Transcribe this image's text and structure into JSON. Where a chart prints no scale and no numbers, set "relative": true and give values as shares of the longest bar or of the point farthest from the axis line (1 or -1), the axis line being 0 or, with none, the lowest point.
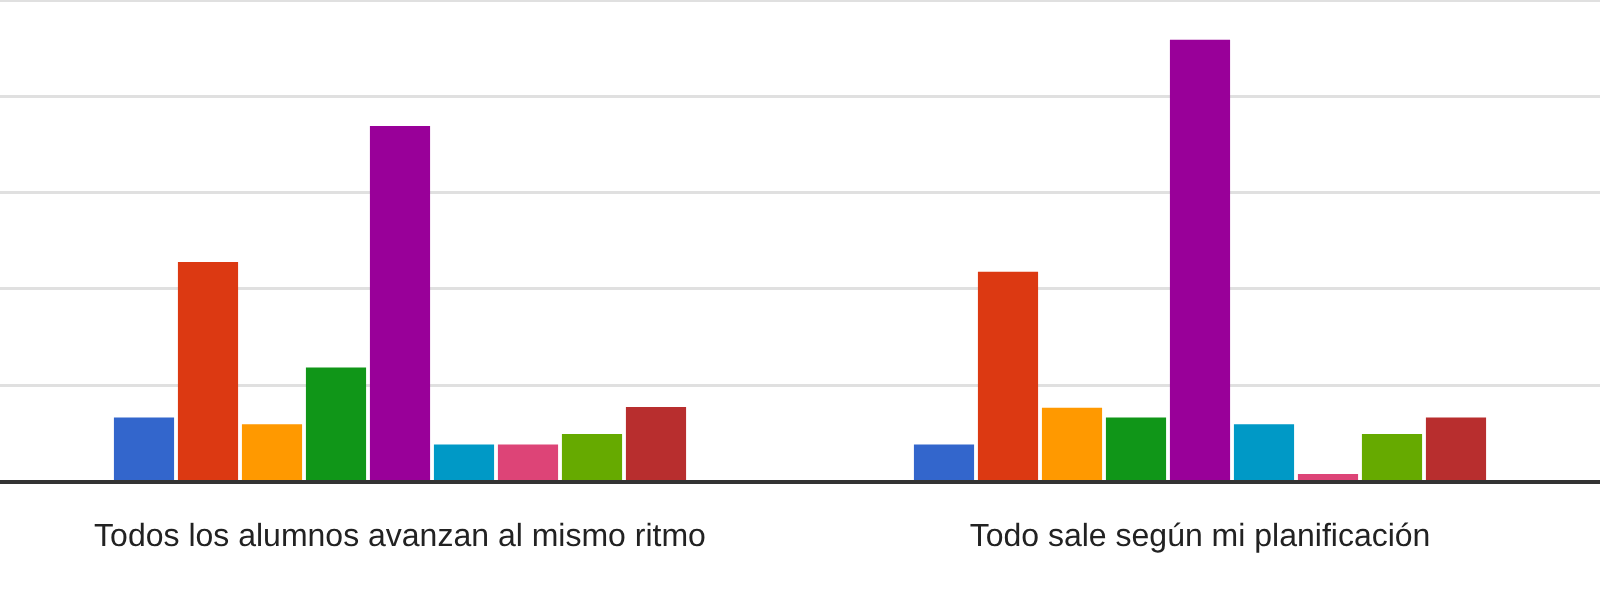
{
  "chart_data": {
    "type": "bar",
    "relative": true,
    "grid": true,
    "legend": false,
    "categories": [
      "Todos los alumnos avanzan al mismo ritmo",
      "Todo sale según mi planificación"
    ],
    "series": [
      {
        "color": "#3366cc",
        "values": [
          0.145,
          0.084
        ]
      },
      {
        "color": "#dc3912",
        "values": [
          0.497,
          0.475
        ]
      },
      {
        "color": "#ff9900",
        "values": [
          0.13,
          0.167
        ]
      },
      {
        "color": "#109618",
        "values": [
          0.258,
          0.145
        ]
      },
      {
        "color": "#990099",
        "values": [
          0.805,
          1
        ]
      },
      {
        "color": "#0099c6",
        "values": [
          0.084,
          0.13
        ]
      },
      {
        "color": "#dd4477",
        "values": [
          0.084,
          0.017
        ]
      },
      {
        "color": "#66aa00",
        "values": [
          0.108,
          0.108
        ]
      },
      {
        "color": "#b82e2e",
        "values": [
          0.169,
          0.145
        ]
      }
    ]
  }
}
